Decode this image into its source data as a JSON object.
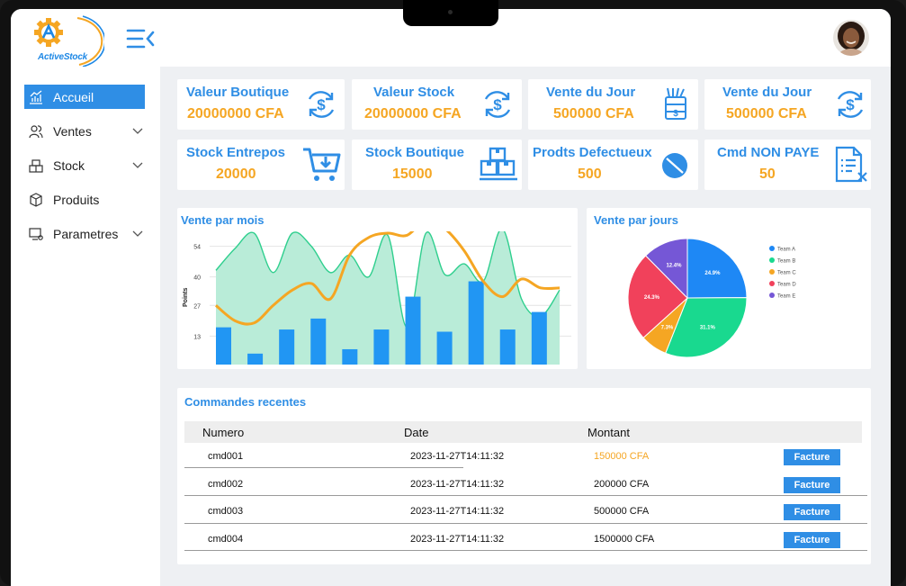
{
  "app": {
    "name": "ActiveStock"
  },
  "sidebar": {
    "items": [
      {
        "label": "Accueil"
      },
      {
        "label": "Ventes"
      },
      {
        "label": "Stock"
      },
      {
        "label": "Produits"
      },
      {
        "label": "Parametres"
      }
    ]
  },
  "stats": [
    {
      "title": "Valeur Boutique",
      "value": "20000000 CFA"
    },
    {
      "title": "Valeur Stock",
      "value": "20000000 CFA"
    },
    {
      "title": "Vente du Jour",
      "value": "500000 CFA"
    },
    {
      "title": "Vente du Jour",
      "value": "500000 CFA"
    },
    {
      "title": "Stock Entrepos",
      "value": "20000"
    },
    {
      "title": "Stock Boutique",
      "value": "15000"
    },
    {
      "title": "Prodts Defectueux",
      "value": "500"
    },
    {
      "title": "Cmd NON PAYE",
      "value": "50"
    }
  ],
  "colors": {
    "accent": "#2f8ee5",
    "value": "#f5a623",
    "area": "#b9ecd8",
    "areaLine": "#2fcf8e",
    "bar": "#2196f3",
    "line": "#f5a623"
  },
  "chart_data": [
    {
      "type": "bar",
      "title": "Vente par mois",
      "ylabel": "Points",
      "yticks": [
        "54",
        "40",
        "27",
        "13"
      ],
      "ylim": [
        0,
        60
      ],
      "bars": [
        17,
        5,
        16,
        21,
        7,
        16,
        31,
        15,
        38,
        16,
        24
      ],
      "area": [
        43,
        53,
        60,
        42,
        60,
        54,
        42,
        50,
        40,
        59,
        17,
        60,
        41,
        46,
        38,
        62,
        30,
        22,
        34
      ],
      "line": [
        27,
        20,
        19,
        27,
        34,
        37,
        30,
        50,
        58,
        60,
        59,
        66,
        62,
        52,
        38,
        31,
        39,
        35,
        35
      ]
    },
    {
      "type": "pie",
      "title": "Vente par jours",
      "legend": [
        "Team A",
        "Team B",
        "Team C",
        "Team D",
        "Team E"
      ],
      "values": [
        24.9,
        31.1,
        7.3,
        24.3,
        12.4
      ],
      "labels": [
        "24.9%",
        "31.1%",
        "7.3%",
        "24.3%",
        "12.4%"
      ],
      "colors": [
        "#1e88f5",
        "#19d98f",
        "#f5a623",
        "#f1415b",
        "#7557d6"
      ]
    }
  ],
  "orders": {
    "title": "Commandes recentes",
    "headers": {
      "numero": "Numero",
      "date": "Date",
      "montant": "Montant"
    },
    "rows": [
      {
        "numero": "cmd001",
        "date": "2023-11-27T14:11:32",
        "montant": "150000 CFA",
        "action": "Facture"
      },
      {
        "numero": "cmd002",
        "date": "2023-11-27T14:11:32",
        "montant": "200000 CFA",
        "action": "Facture"
      },
      {
        "numero": "cmd003",
        "date": "2023-11-27T14:11:32",
        "montant": "500000 CFA",
        "action": "Facture"
      },
      {
        "numero": "cmd004",
        "date": "2023-11-27T14:11:32",
        "montant": "1500000 CFA",
        "action": "Facture"
      }
    ]
  }
}
